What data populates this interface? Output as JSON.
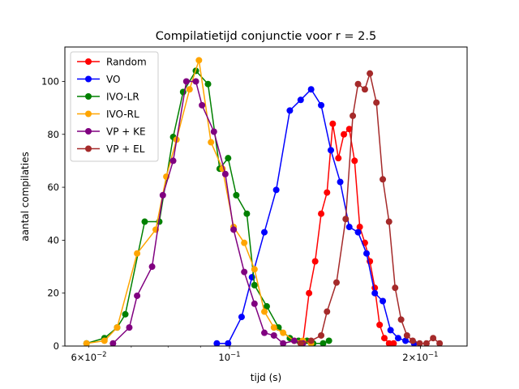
{
  "chart_data": {
    "type": "line",
    "title": "Compilatietijd conjunctie voor r = 2.5",
    "xlabel": "tijd (s)",
    "ylabel": "aantal compilaties",
    "xscale": "log",
    "xlim": [
      0.055,
      0.237
    ],
    "ylim": [
      0,
      113
    ],
    "x_ticks": [
      {
        "value": 0.06,
        "base": "6×10",
        "exp": "−2"
      },
      {
        "value": 0.1,
        "base": "10",
        "exp": "−1"
      },
      {
        "value": 0.2,
        "base": "2×10",
        "exp": "−1"
      }
    ],
    "y_ticks": [
      0,
      20,
      40,
      60,
      80,
      100
    ],
    "grid": false,
    "legend_position": "top-left",
    "series": [
      {
        "name": "Random",
        "color": "#ff0000",
        "points": [
          [
            0.1305,
            1
          ],
          [
            0.1335,
            20
          ],
          [
            0.1365,
            32
          ],
          [
            0.1395,
            50
          ],
          [
            0.1425,
            58
          ],
          [
            0.1455,
            84
          ],
          [
            0.1485,
            71
          ],
          [
            0.1515,
            80
          ],
          [
            0.1545,
            82
          ],
          [
            0.1575,
            70
          ],
          [
            0.1605,
            45
          ],
          [
            0.1635,
            39
          ],
          [
            0.1665,
            32
          ],
          [
            0.1695,
            22
          ],
          [
            0.1725,
            8
          ],
          [
            0.1755,
            3
          ],
          [
            0.1785,
            1
          ],
          [
            0.1815,
            1
          ]
        ]
      },
      {
        "name": "VO",
        "color": "#0000ff",
        "points": [
          [
            0.0955,
            1
          ],
          [
            0.0995,
            1
          ],
          [
            0.1045,
            11
          ],
          [
            0.1085,
            26
          ],
          [
            0.1135,
            43
          ],
          [
            0.1185,
            59
          ],
          [
            0.1245,
            89
          ],
          [
            0.1295,
            93
          ],
          [
            0.1345,
            97
          ],
          [
            0.1395,
            91
          ],
          [
            0.1445,
            74
          ],
          [
            0.1495,
            62
          ],
          [
            0.1545,
            45
          ],
          [
            0.1595,
            43
          ],
          [
            0.1645,
            35
          ],
          [
            0.1695,
            20
          ],
          [
            0.1745,
            17
          ],
          [
            0.1795,
            6
          ],
          [
            0.1845,
            3
          ],
          [
            0.1895,
            2
          ],
          [
            0.1955,
            1
          ]
        ]
      },
      {
        "name": "IVO-LR",
        "color": "#008000",
        "points": [
          [
            0.0595,
            1
          ],
          [
            0.0635,
            3
          ],
          [
            0.0665,
            7
          ],
          [
            0.0685,
            12
          ],
          [
            0.0735,
            47
          ],
          [
            0.0775,
            47
          ],
          [
            0.0815,
            79
          ],
          [
            0.0845,
            96
          ],
          [
            0.0885,
            104
          ],
          [
            0.0925,
            99
          ],
          [
            0.0965,
            67
          ],
          [
            0.0995,
            71
          ],
          [
            0.1025,
            57
          ],
          [
            0.1065,
            50
          ],
          [
            0.1095,
            23
          ],
          [
            0.1145,
            15
          ],
          [
            0.1195,
            7
          ],
          [
            0.1245,
            3
          ],
          [
            0.1285,
            2
          ],
          [
            0.1325,
            2
          ],
          [
            0.1355,
            1
          ],
          [
            0.1405,
            1
          ],
          [
            0.1435,
            2
          ]
        ]
      },
      {
        "name": "IVO-RL",
        "color": "#ffa500",
        "points": [
          [
            0.0595,
            1
          ],
          [
            0.0635,
            2
          ],
          [
            0.0665,
            7
          ],
          [
            0.0715,
            35
          ],
          [
            0.0765,
            44
          ],
          [
            0.0795,
            64
          ],
          [
            0.0825,
            78
          ],
          [
            0.0865,
            97
          ],
          [
            0.0895,
            108
          ],
          [
            0.0935,
            77
          ],
          [
            0.0975,
            67
          ],
          [
            0.1015,
            45
          ],
          [
            0.1055,
            39
          ],
          [
            0.1095,
            29
          ],
          [
            0.1135,
            13
          ],
          [
            0.1175,
            7
          ],
          [
            0.1215,
            5
          ],
          [
            0.1265,
            2
          ],
          [
            0.1305,
            2
          ],
          [
            0.1345,
            1
          ]
        ]
      },
      {
        "name": "VP + KE",
        "color": "#800080",
        "points": [
          [
            0.0655,
            1
          ],
          [
            0.0695,
            7
          ],
          [
            0.0715,
            19
          ],
          [
            0.0755,
            30
          ],
          [
            0.0785,
            57
          ],
          [
            0.0815,
            70
          ],
          [
            0.0855,
            100
          ],
          [
            0.0885,
            100
          ],
          [
            0.0905,
            91
          ],
          [
            0.0945,
            81
          ],
          [
            0.0985,
            65
          ],
          [
            0.1015,
            44
          ],
          [
            0.1055,
            28
          ],
          [
            0.1095,
            16
          ],
          [
            0.1135,
            5
          ],
          [
            0.1175,
            4
          ],
          [
            0.1215,
            1
          ],
          [
            0.1265,
            2
          ],
          [
            0.1305,
            1
          ]
        ]
      },
      {
        "name": "VP + EL",
        "color": "#a52a2a",
        "points": [
          [
            0.1295,
            1
          ],
          [
            0.1345,
            2
          ],
          [
            0.1395,
            4
          ],
          [
            0.1425,
            13
          ],
          [
            0.1475,
            24
          ],
          [
            0.1525,
            48
          ],
          [
            0.1565,
            87
          ],
          [
            0.1595,
            99
          ],
          [
            0.1635,
            97
          ],
          [
            0.1665,
            103
          ],
          [
            0.1705,
            92
          ],
          [
            0.1745,
            63
          ],
          [
            0.1785,
            47
          ],
          [
            0.1825,
            22
          ],
          [
            0.1865,
            10
          ],
          [
            0.1905,
            4
          ],
          [
            0.1945,
            2
          ],
          [
            0.1995,
            1
          ],
          [
            0.2045,
            1
          ],
          [
            0.2095,
            3
          ],
          [
            0.2145,
            1
          ]
        ]
      }
    ]
  }
}
